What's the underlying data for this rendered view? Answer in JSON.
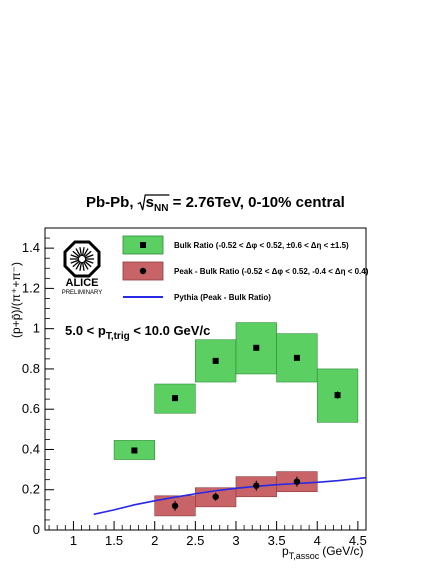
{
  "chart_data": {
    "type": "scatter",
    "title": "Pb-Pb, √s_NN = 2.76TeV, 0-10% central",
    "title_parts": {
      "pre": "Pb-Pb, ",
      "sqrt": "s",
      "sub": "NN",
      "post": " = 2.76TeV, 0-10% central"
    },
    "annotation": {
      "pre": "5.0 < p",
      "sub": "T,trig",
      "post": " < 10.0 GeV/c"
    },
    "logo": {
      "name": "ALICE",
      "tag": "PRELIMINARY"
    },
    "xlabel": {
      "main": "p",
      "sub": "T,assoc",
      "unit": "(GeV/c)"
    },
    "ylabel": "(p+p̄)/(π⁺+π⁻)",
    "xlim": [
      0.65,
      4.6
    ],
    "ylim": [
      0,
      1.5
    ],
    "x_ticks": [
      "1",
      "1.5",
      "2",
      "2.5",
      "3",
      "3.5",
      "4",
      "4.5"
    ],
    "x_tick_values": [
      1,
      1.5,
      2,
      2.5,
      3,
      3.5,
      4,
      4.5
    ],
    "y_ticks": [
      "0",
      "0.2",
      "0.4",
      "0.6",
      "0.8",
      "1",
      "1.2",
      "1.4"
    ],
    "y_tick_values": [
      0,
      0.2,
      0.4,
      0.6,
      0.8,
      1.0,
      1.2,
      1.4
    ],
    "series": [
      {
        "name": "Bulk Ratio (-0.52 < Δφ < 0.52, ±0.6 < Δη < ±1.5)",
        "marker": "square",
        "color": "#5bcf62",
        "points": [
          {
            "x": 1.75,
            "y": 0.395,
            "sys_lo": 0.35,
            "sys_hi": 0.445,
            "x_lo": 1.5,
            "x_hi": 2.0,
            "stat": 0.005
          },
          {
            "x": 2.25,
            "y": 0.655,
            "sys_lo": 0.58,
            "sys_hi": 0.725,
            "x_lo": 2.0,
            "x_hi": 2.5,
            "stat": 0.008
          },
          {
            "x": 2.75,
            "y": 0.84,
            "sys_lo": 0.735,
            "sys_hi": 0.945,
            "x_lo": 2.5,
            "x_hi": 3.0,
            "stat": 0.01
          },
          {
            "x": 3.25,
            "y": 0.905,
            "sys_lo": 0.775,
            "sys_hi": 1.03,
            "x_lo": 3.0,
            "x_hi": 3.5,
            "stat": 0.01
          },
          {
            "x": 3.75,
            "y": 0.855,
            "sys_lo": 0.735,
            "sys_hi": 0.975,
            "x_lo": 3.5,
            "x_hi": 4.0,
            "stat": 0.012
          },
          {
            "x": 4.25,
            "y": 0.67,
            "sys_lo": 0.535,
            "sys_hi": 0.8,
            "x_lo": 4.0,
            "x_hi": 4.5,
            "stat": 0.018
          }
        ]
      },
      {
        "name": "Peak - Bulk Ratio (-0.52 < Δφ < 0.52, -0.4 < Δη < 0.4)",
        "marker": "circle",
        "color": "#c86468",
        "points": [
          {
            "x": 2.25,
            "y": 0.12,
            "sys_lo": 0.07,
            "sys_hi": 0.17,
            "x_lo": 2.0,
            "x_hi": 2.5,
            "stat": 0.025
          },
          {
            "x": 2.75,
            "y": 0.165,
            "sys_lo": 0.115,
            "sys_hi": 0.21,
            "x_lo": 2.5,
            "x_hi": 3.0,
            "stat": 0.02
          },
          {
            "x": 3.25,
            "y": 0.22,
            "sys_lo": 0.165,
            "sys_hi": 0.265,
            "x_lo": 3.0,
            "x_hi": 3.5,
            "stat": 0.025
          },
          {
            "x": 3.75,
            "y": 0.24,
            "sys_lo": 0.19,
            "sys_hi": 0.29,
            "x_lo": 3.5,
            "x_hi": 4.0,
            "stat": 0.025
          }
        ]
      },
      {
        "name": "Pythia (Peak - Bulk Ratio)",
        "marker": "line",
        "color": "#2828e6",
        "x": [
          1.25,
          1.5,
          1.75,
          2.0,
          2.25,
          2.5,
          2.75,
          3.0,
          3.25,
          3.5,
          3.75,
          4.0,
          4.25,
          4.6
        ],
        "y": [
          0.078,
          0.1,
          0.125,
          0.145,
          0.163,
          0.18,
          0.195,
          0.207,
          0.217,
          0.225,
          0.231,
          0.237,
          0.245,
          0.26
        ]
      }
    ],
    "legend_parts": [
      {
        "pre": "Bulk Ratio (-0.52 < Δ",
        "a": "φ",
        "mid1": " < 0.52, ±0.6 < Δ",
        "b": "η",
        "post": " < ±1.5)"
      },
      {
        "pre": "Peak - Bulk Ratio (-0.52 < Δ",
        "a": "φ",
        "mid1": " < 0.52, -0.4 < Δ",
        "b": "η",
        "post": " < 0.4)"
      },
      {
        "pre": "Pythia (Peak - Bulk Ratio)",
        "a": "",
        "mid1": "",
        "b": "",
        "post": ""
      }
    ],
    "legend_placement": "top-left",
    "grid": false
  }
}
